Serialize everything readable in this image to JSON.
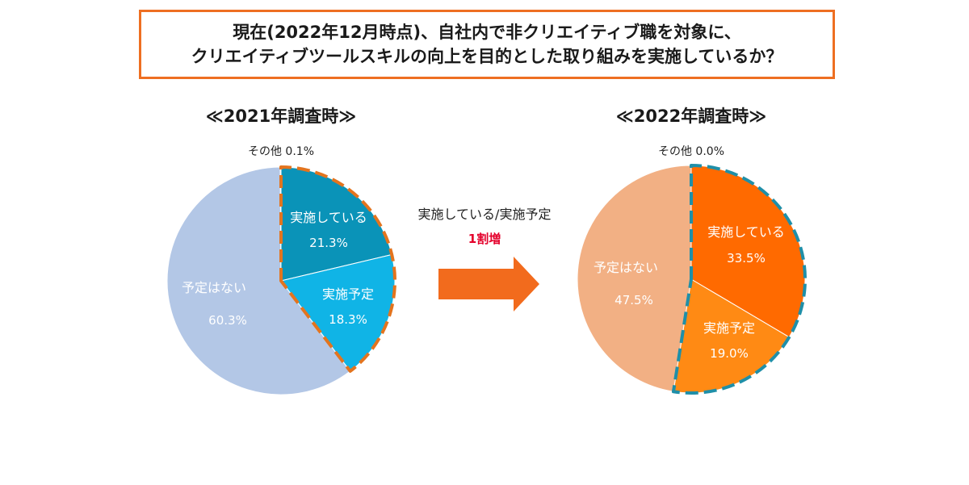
{
  "header": {
    "line1": "現在(2022年12月時点)、自社内で非クリエイティブ職を対象に、",
    "line2": "クリエイティブツールスキルの向上を目的とした取り組みを実施しているか？"
  },
  "middle": {
    "label": "実施している/実施予定",
    "change": "1割増"
  },
  "colors": {
    "border": "#ee6f22",
    "arrow": "#f26b1d",
    "change_text": "#e4002b"
  },
  "chart_data": [
    {
      "type": "pie",
      "title": "≪2021年調査時≫",
      "slices": [
        {
          "label": "実施している",
          "value": 21.3,
          "display": "21.3%",
          "color": "#0a93b8"
        },
        {
          "label": "実施予定",
          "value": 18.3,
          "display": "18.3%",
          "color": "#10b4e6"
        },
        {
          "label": "予定はない",
          "value": 60.3,
          "display": "60.3%",
          "color": "#b3c7e6"
        },
        {
          "label": "その他",
          "value": 0.1,
          "display": "0.1%",
          "color": "#b3c7e6"
        }
      ],
      "other_label": "その他 0.1%",
      "highlight_outline_color": "#e3741e"
    },
    {
      "type": "pie",
      "title": "≪2022年調査時≫",
      "slices": [
        {
          "label": "実施している",
          "value": 33.5,
          "display": "33.5%",
          "color": "#ff6a00"
        },
        {
          "label": "実施予定",
          "value": 19.0,
          "display": "19.0%",
          "color": "#ff8a14"
        },
        {
          "label": "予定はない",
          "value": 47.5,
          "display": "47.5%",
          "color": "#f2b084"
        },
        {
          "label": "その他",
          "value": 0.0,
          "display": "0.0%",
          "color": "#f2b084"
        }
      ],
      "other_label": "その他 0.0%",
      "highlight_outline_color": "#1f8fa8"
    }
  ]
}
